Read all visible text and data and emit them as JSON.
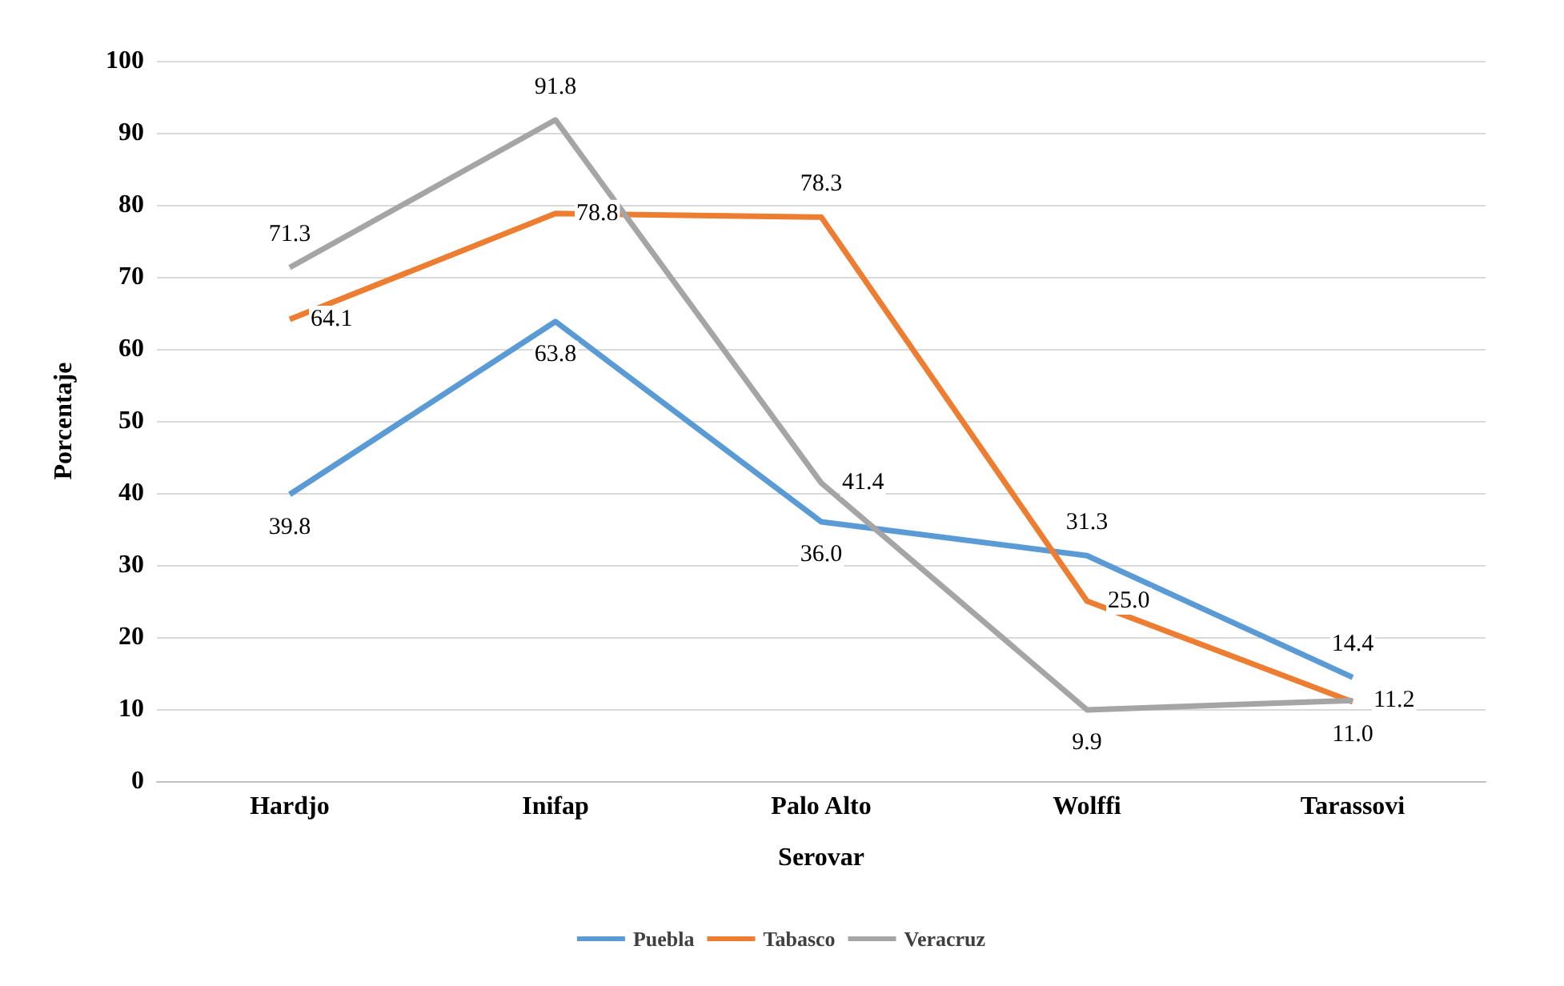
{
  "chart_data": {
    "type": "line",
    "xlabel": "Serovar",
    "ylabel": "Porcentaje",
    "categories": [
      "Hardjo",
      "Inifap",
      "Palo Alto",
      "Wolffi",
      "Tarassovi"
    ],
    "series": [
      {
        "name": "Puebla",
        "color": "#5b9bd5",
        "values": [
          39.8,
          63.8,
          36.0,
          31.3,
          14.4
        ],
        "value_labels": [
          "39.8",
          "63.8",
          "36.0",
          "31.3",
          "14.4"
        ]
      },
      {
        "name": "Tabasco",
        "color": "#ed7d31",
        "values": [
          64.1,
          78.8,
          78.3,
          25.0,
          11.0
        ],
        "value_labels": [
          "64.1",
          "78.8",
          "78.3",
          "25.0",
          "11.0"
        ]
      },
      {
        "name": "Veracruz",
        "color": "#a5a5a5",
        "values": [
          71.3,
          91.8,
          41.4,
          9.9,
          11.2
        ],
        "value_labels": [
          "71.3",
          "91.8",
          "41.4",
          "9.9",
          "11.2"
        ]
      }
    ],
    "ylim": [
      0,
      100
    ],
    "yticks": [
      0,
      10,
      20,
      30,
      40,
      50,
      60,
      70,
      80,
      90,
      100
    ],
    "grid": "y",
    "legend": "bottom",
    "marker": "none",
    "line_style": "solid"
  }
}
